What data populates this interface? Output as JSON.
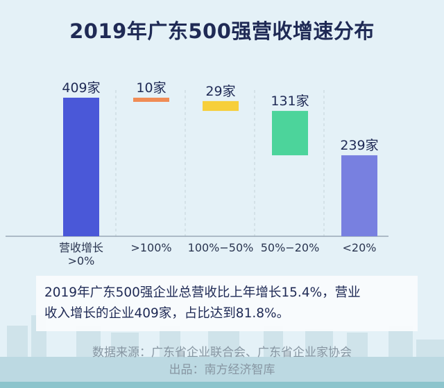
{
  "colors": {
    "background": "#e4f1f7",
    "title": "#1f2a55",
    "axis": "#8a9aa8",
    "text": "#1f2a55"
  },
  "chart_data": {
    "type": "bar",
    "subtype": "waterfall",
    "title": "2019年广东500强营收增速分布",
    "categories": [
      "营收增长\n>0%",
      ">100%",
      "100%−50%",
      "50%−20%",
      "<20%"
    ],
    "values": [
      409,
      10,
      29,
      131,
      239
    ],
    "data_labels": [
      "409家",
      "10家",
      "29家",
      "131家",
      "239家"
    ],
    "colors": [
      "#4a58d8",
      "#f08c55",
      "#f7cf3a",
      "#4cd49b",
      "#7880e0"
    ],
    "ylim": [
      0,
      409
    ],
    "grid": "vertical dashed separators",
    "legend": "none"
  },
  "summary": {
    "line1": "2019年广东500强企业总营收比上年增长15.4%，营业",
    "line2": "收入增长的企业409家，占比达到81.8%。"
  },
  "footer": {
    "source": "数据来源：广东省企业联合会、广东省企业家协会",
    "producer": "出品：南方经济智库"
  }
}
